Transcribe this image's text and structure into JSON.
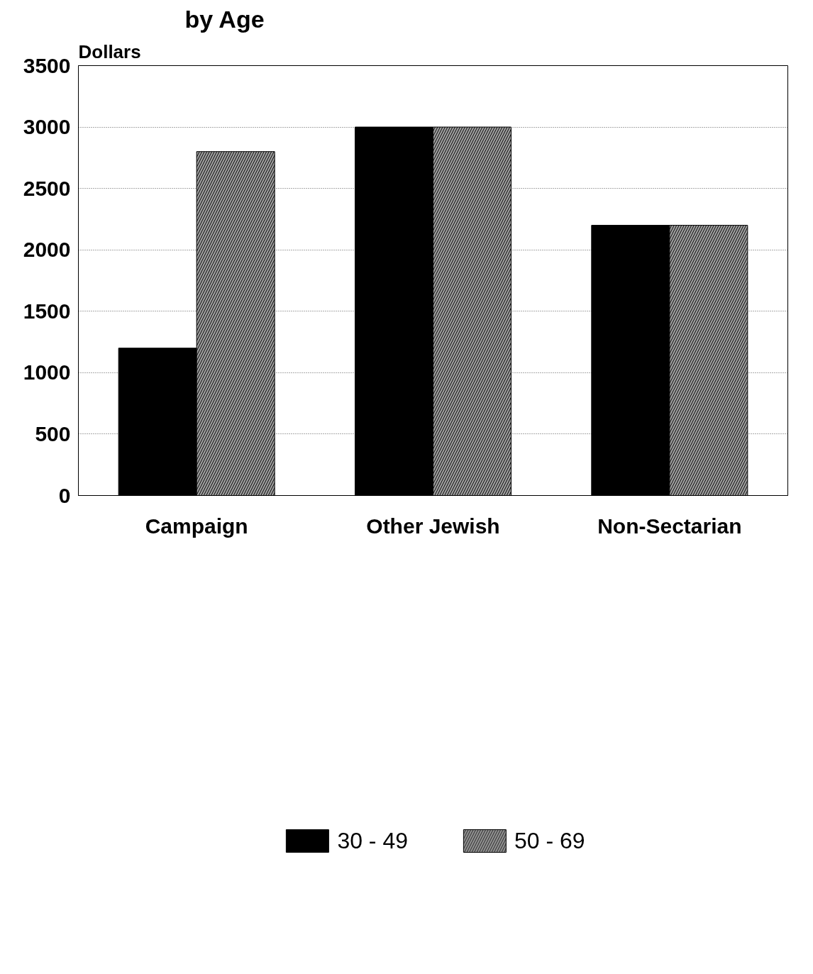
{
  "chart_data": {
    "type": "bar",
    "title": "by Age",
    "ylabel": "Dollars",
    "categories": [
      "Campaign",
      "Other Jewish",
      "Non-Sectarian"
    ],
    "series": [
      {
        "name": "30 - 49",
        "color": "#000000",
        "values": [
          1200,
          3000,
          2200
        ]
      },
      {
        "name": "50 - 69",
        "color": "#a0a0a0",
        "values": [
          2800,
          3000,
          2200
        ]
      }
    ],
    "ylim": [
      0,
      3500
    ],
    "yticks": [
      0,
      500,
      1000,
      1500,
      2000,
      2500,
      3000,
      3500
    ],
    "grid": "y",
    "legend": "bottom"
  }
}
